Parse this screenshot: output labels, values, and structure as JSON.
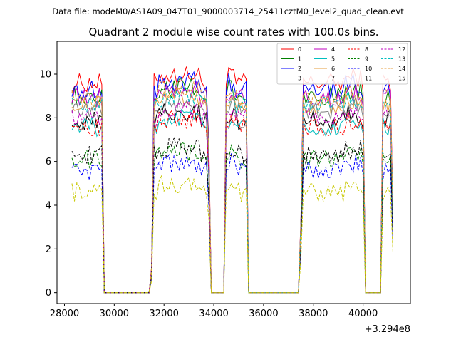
{
  "chart_data": {
    "type": "line",
    "suptitle": "Data file: modeM0/AS1A09_047T01_9000003714_25411cztM0_level2_quad_clean.evt",
    "title": "Quadrant 2 module wise count rates with 100.0s bins.",
    "xlabel": "",
    "ylabel": "",
    "x_offset_label": "+3.294e8",
    "xlim": [
      27700,
      41900
    ],
    "ylim": [
      -0.5,
      11.5
    ],
    "xticks": [
      28000,
      30000,
      32000,
      34000,
      36000,
      38000,
      40000
    ],
    "xtick_labels": [
      "28000",
      "30000",
      "32000",
      "34000",
      "36000",
      "38000",
      "40000"
    ],
    "yticks": [
      0,
      2,
      4,
      6,
      8,
      10
    ],
    "ytick_labels": [
      "0",
      "2",
      "4",
      "6",
      "8",
      "10"
    ],
    "x_start": 28300,
    "bin_width": 100,
    "x_end": 41200,
    "segments": [
      {
        "start": 28300,
        "end": 29500
      },
      {
        "start": 31500,
        "end": 33800
      },
      {
        "start": 34500,
        "end": 35300
      },
      {
        "start": 37500,
        "end": 40000
      },
      {
        "start": 40800,
        "end": 41200
      }
    ],
    "series": [
      {
        "name": "0",
        "color": "#ff0000",
        "dash": false,
        "level": 9.6
      },
      {
        "name": "1",
        "color": "#008000",
        "dash": false,
        "level": 9.0
      },
      {
        "name": "2",
        "color": "#0000ff",
        "dash": false,
        "level": 9.3
      },
      {
        "name": "3",
        "color": "#000000",
        "dash": false,
        "level": 7.9
      },
      {
        "name": "4",
        "color": "#bf00bf",
        "dash": false,
        "level": 8.9
      },
      {
        "name": "5",
        "color": "#00bfbf",
        "dash": false,
        "level": 7.6
      },
      {
        "name": "6",
        "color": "#e69c3c",
        "dash": false,
        "level": 8.6
      },
      {
        "name": "7",
        "color": "#808080",
        "dash": false,
        "level": 8.3
      },
      {
        "name": "8",
        "color": "#ff0000",
        "dash": true,
        "level": 7.6
      },
      {
        "name": "9",
        "color": "#008000",
        "dash": true,
        "level": 6.1
      },
      {
        "name": "10",
        "color": "#0000ff",
        "dash": true,
        "level": 5.6
      },
      {
        "name": "11",
        "color": "#000000",
        "dash": true,
        "level": 6.3
      },
      {
        "name": "12",
        "color": "#bf00bf",
        "dash": true,
        "level": 8.1
      },
      {
        "name": "13",
        "color": "#00bfbf",
        "dash": true,
        "level": 8.6
      },
      {
        "name": "14",
        "color": "#e69c3c",
        "dash": true,
        "level": 8.9
      },
      {
        "name": "15",
        "color": "#c8c800",
        "dash": true,
        "level": 4.6
      }
    ]
  }
}
